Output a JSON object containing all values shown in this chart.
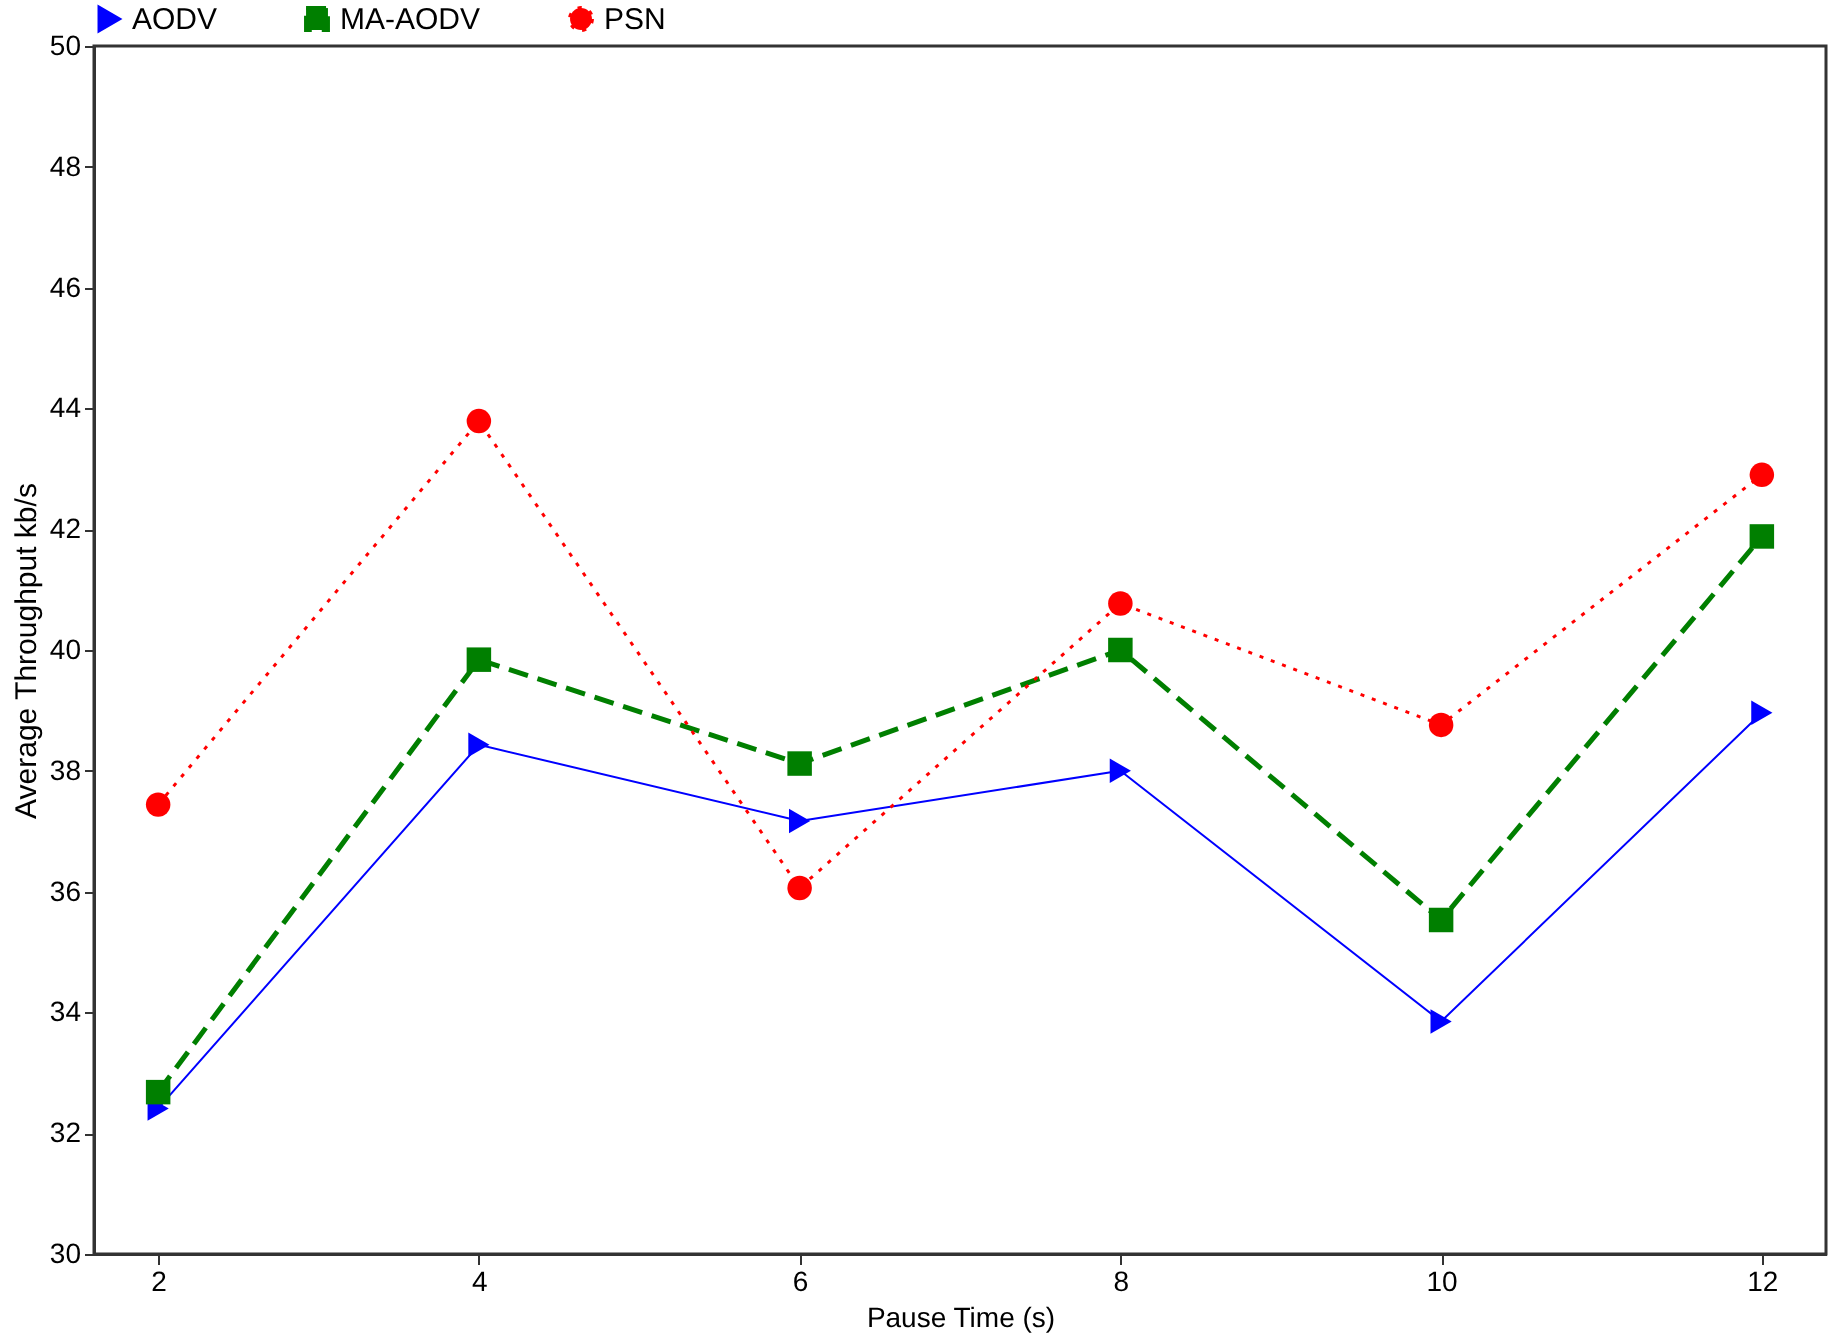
{
  "chart_data": {
    "type": "line",
    "xlabel": "Pause Time (s)",
    "ylabel": "Average Throughput  kb/s",
    "x": [
      2,
      4,
      6,
      8,
      10,
      12
    ],
    "xlim": [
      1.6,
      12.4
    ],
    "xticks": [
      2,
      4,
      6,
      8,
      10,
      12
    ],
    "ylim": [
      30,
      50
    ],
    "yticks": [
      30,
      32,
      34,
      36,
      38,
      40,
      42,
      44,
      46,
      48,
      50
    ],
    "grid": false,
    "legend": "top",
    "series": [
      {
        "name": "AODV",
        "color": "#0000ff",
        "marker": "triangle",
        "line_style": "solid",
        "values": [
          32.41,
          38.43,
          37.17,
          38.0,
          33.85,
          38.96
        ]
      },
      {
        "name": "MA-AODV",
        "color": "#007f00",
        "marker": "square",
        "line_style": "dashed",
        "values": [
          32.68,
          39.84,
          38.12,
          40.0,
          35.53,
          41.88
        ]
      },
      {
        "name": "PSN",
        "color": "#ff0000",
        "marker": "circle",
        "line_style": "dotted",
        "values": [
          37.44,
          43.79,
          36.06,
          40.77,
          38.76,
          42.9
        ]
      }
    ]
  }
}
